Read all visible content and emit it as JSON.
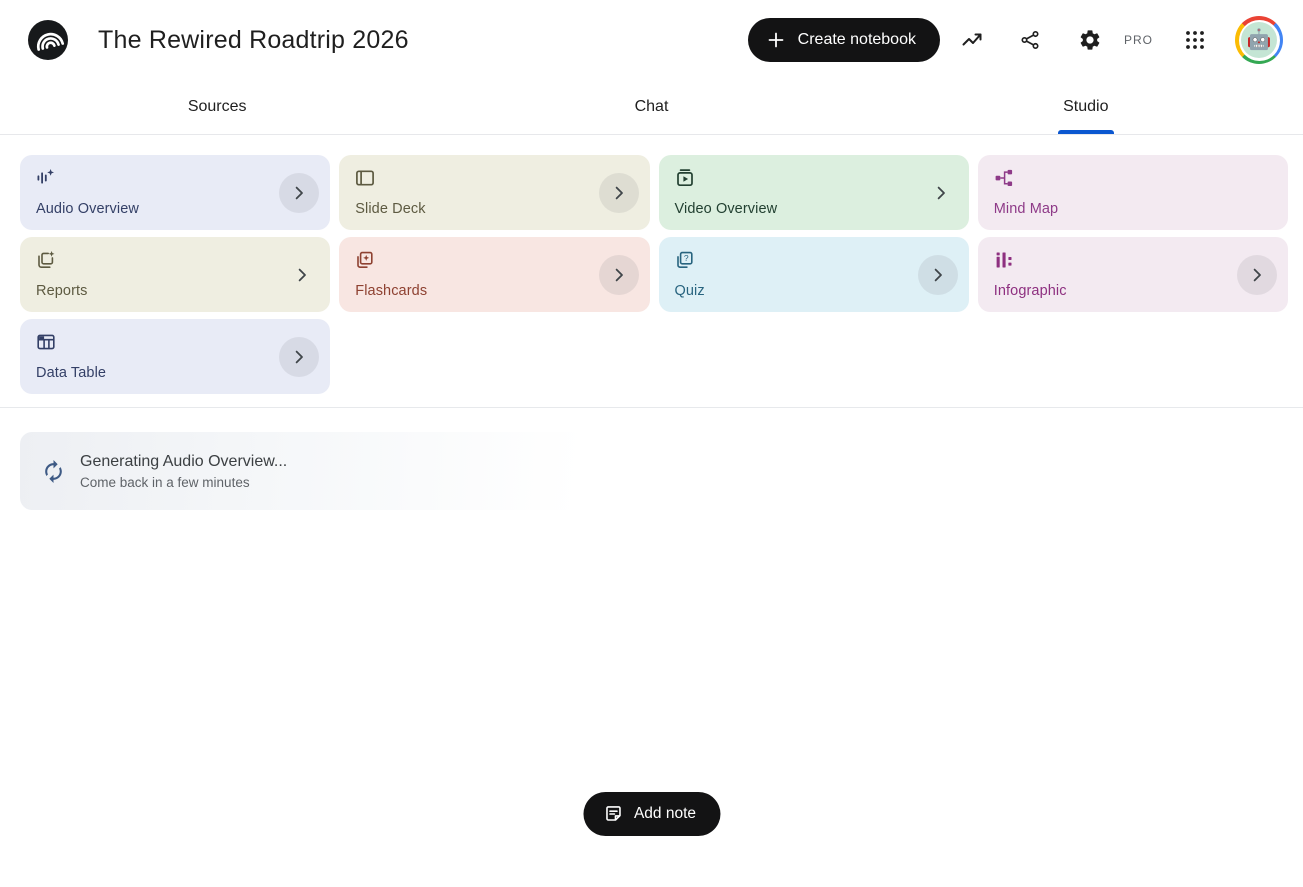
{
  "header": {
    "title": "The Rewired Roadtrip 2026",
    "create_button_label": "Create notebook",
    "pro_badge": "PRO",
    "icon_names": [
      "notebooklm-logo-icon",
      "plus-icon",
      "trending-up-icon",
      "share-icon",
      "settings-gear-icon",
      "apps-grid-icon",
      "robot-avatar"
    ]
  },
  "tabs": [
    {
      "label": "Sources",
      "active": false
    },
    {
      "label": "Chat",
      "active": false
    },
    {
      "label": "Studio",
      "active": true
    }
  ],
  "accent_color": "#0b57d0",
  "button_color": "#131314",
  "studio_cards": [
    {
      "label": "Audio Overview",
      "icon": "audio-waveform-icon",
      "chevron": "circle",
      "colors": {
        "bg": "#e8ebf6",
        "fg": "#333f66"
      }
    },
    {
      "label": "Slide Deck",
      "icon": "slide-deck-icon",
      "chevron": "circle",
      "colors": {
        "bg": "#efeee1",
        "fg": "#5d5a41"
      }
    },
    {
      "label": "Video Overview",
      "icon": "video-overview-icon",
      "chevron": "plain",
      "colors": {
        "bg": "#dcefdf",
        "fg": "#224031"
      }
    },
    {
      "label": "Mind Map",
      "icon": "mind-map-icon",
      "chevron": "none",
      "colors": {
        "bg": "#f3eaf1",
        "fg": "#8e3a88"
      }
    },
    {
      "label": "Reports",
      "icon": "reports-icon",
      "chevron": "plain",
      "colors": {
        "bg": "#efeee1",
        "fg": "#5d5a41"
      }
    },
    {
      "label": "Flashcards",
      "icon": "flashcards-icon",
      "chevron": "circle",
      "colors": {
        "bg": "#f8e6e2",
        "fg": "#8e4131"
      }
    },
    {
      "label": "Quiz",
      "icon": "quiz-icon",
      "chevron": "circle",
      "colors": {
        "bg": "#def0f6",
        "fg": "#28647f"
      }
    },
    {
      "label": "Infographic",
      "icon": "infographic-icon",
      "chevron": "circle",
      "colors": {
        "bg": "#f3eaf1",
        "fg": "#8e3080"
      }
    },
    {
      "label": "Data Table",
      "icon": "data-table-icon",
      "chevron": "circle",
      "colors": {
        "bg": "#e8ebf6",
        "fg": "#333f66"
      }
    }
  ],
  "generating": {
    "title": "Generating Audio Overview...",
    "subtitle": "Come back in a few minutes",
    "icon": "sync-icon",
    "icon_color": "#3e5a85"
  },
  "footer": {
    "add_note_label": "Add note",
    "icon": "note-icon"
  }
}
